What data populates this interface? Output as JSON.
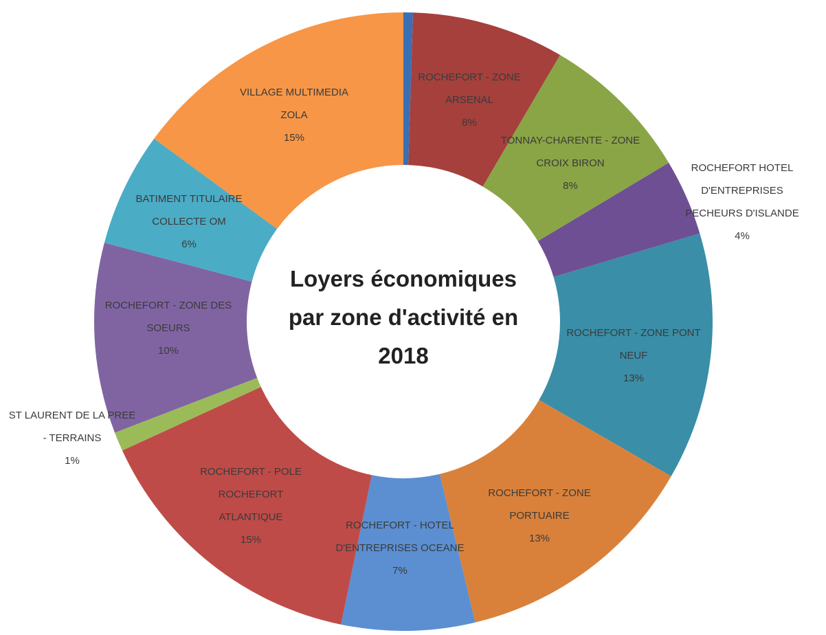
{
  "chart_data": {
    "type": "donut",
    "title": "Loyers économiques par zone d'activité en 2018",
    "categories": [
      null,
      "ROCHEFORT - ZONE ARSENAL",
      "TONNAY-CHARENTE - ZONE CROIX BIRON",
      "ROCHEFORT HOTEL D'ENTREPRISES PECHEURS D'ISLANDE",
      "ROCHEFORT - ZONE PONT NEUF",
      "ROCHEFORT - ZONE PORTUAIRE",
      "ROCHEFORT - HOTEL D'ENTREPRISES OCEANE",
      "ROCHEFORT - POLE ROCHEFORT ATLANTIQUE",
      "ST LAURENT DE LA PREE - TERRAINS",
      "ROCHEFORT - ZONE DES SOEURS",
      "BATIMENT TITULAIRE COLLECTE OM",
      "VILLAGE MULTIMEDIA ZOLA"
    ],
    "values": [
      0.5,
      8,
      8,
      4,
      13,
      13,
      7,
      15,
      1,
      10,
      6,
      15
    ],
    "value_labels": [
      null,
      "8%",
      "8%",
      "4%",
      "13%",
      "13%",
      "7%",
      "15%",
      "1%",
      "10%",
      "6%",
      "15%"
    ],
    "colors": [
      "#3b6fb3",
      "#a5403d",
      "#8aa546",
      "#6e4f94",
      "#3a8ea7",
      "#d9813a",
      "#5b8fd1",
      "#bf4b48",
      "#9bbb59",
      "#8064a2",
      "#4bacc6",
      "#f79646"
    ]
  }
}
